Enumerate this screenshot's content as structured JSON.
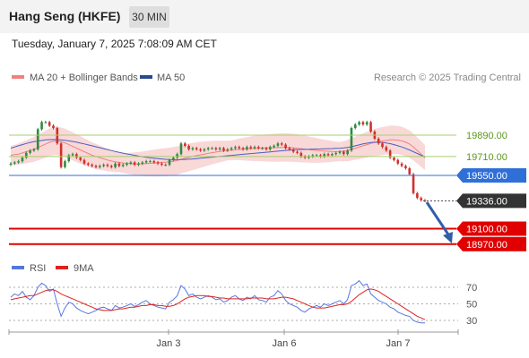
{
  "header": {
    "title": "Hang Seng (HKFE)",
    "timeframe": "30 MIN",
    "datetime": "Tuesday, January 7, 2025 7:08:09 AM CET"
  },
  "legend": {
    "ma20_bb": "MA 20 + Bollinger Bands",
    "ma50": "MA 50",
    "copyright": "Research © 2025 Trading Central"
  },
  "rsi_legend": {
    "rsi": "RSI",
    "ma9": "9MA"
  },
  "colors": {
    "candle_up": "#2e8b3e",
    "candle_down": "#d0302a",
    "bollinger_fill": "#f7c7c7",
    "ma20": "#f08080",
    "ma50": "#4a5fbf",
    "support": "#e00000",
    "pivot": "#2f6fd8",
    "resistance": "#a6cf6f",
    "last": "#333333",
    "rsi": "#5577dd",
    "rsi_ma": "#dd2222"
  },
  "chart_data": [
    {
      "type": "candlestick",
      "x_ticks": [
        "Jan 3",
        "Jan 6",
        "Jan 7"
      ],
      "price_levels": [
        {
          "value": 19890.0,
          "label": "19890.00",
          "kind": "resistance"
        },
        {
          "value": 19710.0,
          "label": "19710.00",
          "kind": "resistance"
        },
        {
          "value": 19550.0,
          "label": "19550.00",
          "kind": "pivot"
        },
        {
          "value": 19336.0,
          "label": "19336.00",
          "kind": "last"
        },
        {
          "value": 19100.0,
          "label": "19100.00",
          "kind": "support"
        },
        {
          "value": 18970.0,
          "label": "18970.00",
          "kind": "support"
        }
      ],
      "ylim": [
        18950,
        20190
      ],
      "close": [
        19650,
        19660,
        19670,
        19700,
        19740,
        19760,
        19770,
        19940,
        20000,
        20000,
        19970,
        19950,
        19820,
        19620,
        19670,
        19720,
        19730,
        19700,
        19680,
        19650,
        19640,
        19630,
        19620,
        19630,
        19640,
        19630,
        19620,
        19650,
        19630,
        19640,
        19650,
        19660,
        19640,
        19650,
        19660,
        19670,
        19670,
        19660,
        19650,
        19640,
        19640,
        19680,
        19700,
        19730,
        19820,
        19800,
        19770,
        19780,
        19770,
        19760,
        19770,
        19780,
        19780,
        19770,
        19780,
        19760,
        19770,
        19780,
        19790,
        19780,
        19770,
        19790,
        19780,
        19790,
        19780,
        19780,
        19770,
        19790,
        19800,
        19820,
        19810,
        19780,
        19770,
        19750,
        19740,
        19710,
        19700,
        19710,
        19720,
        19720,
        19710,
        19730,
        19720,
        19730,
        19740,
        19750,
        19730,
        19760,
        19950,
        19980,
        20000,
        19980,
        20000,
        19920,
        19860,
        19820,
        19790,
        19760,
        19700,
        19680,
        19650,
        19630,
        19610,
        19560,
        19400,
        19360,
        19340,
        19336
      ],
      "ma20": [
        19720,
        19725,
        19730,
        19740,
        19750,
        19760,
        19770,
        19785,
        19800,
        19815,
        19830,
        19838,
        19840,
        19835,
        19825,
        19810,
        19795,
        19780,
        19765,
        19750,
        19735,
        19720,
        19710,
        19700,
        19690,
        19680,
        19672,
        19665,
        19660,
        19655,
        19652,
        19650,
        19648,
        19647,
        19648,
        19650,
        19652,
        19655,
        19657,
        19660,
        19662,
        19665,
        19670,
        19676,
        19686,
        19694,
        19702,
        19710,
        19718,
        19724,
        19730,
        19736,
        19742,
        19747,
        19752,
        19756,
        19760,
        19763,
        19766,
        19770,
        19772,
        19774,
        19776,
        19778,
        19780,
        19781,
        19782,
        19783,
        19784,
        19785,
        19786,
        19786,
        19785,
        19783,
        19780,
        19776,
        19772,
        19768,
        19764,
        19761,
        19758,
        19756,
        19754,
        19752,
        19751,
        19752,
        19754,
        19760,
        19770,
        19780,
        19790,
        19800,
        19810,
        19820,
        19828,
        19835,
        19840,
        19845,
        19850,
        19850,
        19848,
        19842,
        19830,
        19815,
        19790,
        19760,
        19730,
        19700
      ],
      "ma50": [
        19780,
        19790,
        19800,
        19810,
        19820,
        19828,
        19835,
        19840,
        19845,
        19850,
        19852,
        19853,
        19852,
        19850,
        19846,
        19842,
        19836,
        19830,
        19823,
        19816,
        19808,
        19800,
        19792,
        19784,
        19776,
        19768,
        19760,
        19752,
        19745,
        19738,
        19731,
        19725,
        19719,
        19713,
        19708,
        19703,
        19699,
        19695,
        19692,
        19689,
        19686,
        19684,
        19683,
        19683,
        19684,
        19685,
        19687,
        19689,
        19692,
        19695,
        19698,
        19701,
        19704,
        19707,
        19710,
        19713,
        19716,
        19719,
        19722,
        19725,
        19728,
        19731,
        19734,
        19737,
        19740,
        19743,
        19746,
        19749,
        19752,
        19755,
        19758,
        19761,
        19764,
        19766,
        19768,
        19769,
        19770,
        19771,
        19772,
        19773,
        19774,
        19775,
        19776,
        19777,
        19778,
        19780,
        19782,
        19786,
        19792,
        19800,
        19808,
        19816,
        19822,
        19828,
        19830,
        19830,
        19828,
        19824,
        19818,
        19810,
        19800,
        19790,
        19778,
        19765,
        19750,
        19735,
        19720,
        19705
      ]
    },
    {
      "type": "line",
      "name": "RSI",
      "y_ticks": [
        70,
        50,
        30
      ],
      "ylim": [
        20,
        80
      ],
      "x_ticks": [
        "Jan 3",
        "Jan 6",
        "Jan 7"
      ],
      "series": [
        {
          "name": "RSI",
          "values": [
            58,
            62,
            60,
            65,
            58,
            55,
            60,
            70,
            75,
            72,
            65,
            68,
            50,
            35,
            45,
            52,
            50,
            45,
            42,
            40,
            38,
            40,
            42,
            45,
            46,
            44,
            42,
            48,
            45,
            46,
            48,
            50,
            47,
            49,
            52,
            54,
            50,
            48,
            46,
            45,
            44,
            52,
            55,
            60,
            72,
            68,
            60,
            62,
            58,
            56,
            58,
            60,
            58,
            55,
            56,
            52,
            54,
            58,
            60,
            56,
            54,
            58,
            56,
            60,
            55,
            54,
            52,
            58,
            60,
            66,
            62,
            54,
            50,
            48,
            46,
            42,
            40,
            44,
            46,
            48,
            46,
            50,
            48,
            50,
            52,
            54,
            50,
            55,
            72,
            74,
            78,
            72,
            74,
            62,
            58,
            54,
            52,
            50,
            46,
            44,
            40,
            38,
            36,
            35,
            30,
            28,
            27,
            27
          ]
        },
        {
          "name": "9MA",
          "values": [
            55,
            56,
            57,
            58,
            59,
            60,
            60,
            62,
            64,
            66,
            67,
            67,
            65,
            62,
            60,
            58,
            56,
            54,
            52,
            50,
            48,
            46,
            44,
            43,
            42,
            42,
            42,
            43,
            44,
            44,
            45,
            46,
            46,
            47,
            48,
            48,
            49,
            49,
            48,
            48,
            47,
            47,
            48,
            50,
            53,
            56,
            58,
            59,
            60,
            60,
            60,
            59,
            59,
            58,
            57,
            57,
            56,
            56,
            56,
            56,
            56,
            56,
            57,
            57,
            57,
            57,
            56,
            56,
            56,
            57,
            58,
            58,
            57,
            56,
            54,
            52,
            50,
            48,
            46,
            45,
            45,
            45,
            46,
            47,
            48,
            49,
            49,
            50,
            53,
            57,
            61,
            64,
            67,
            68,
            67,
            65,
            62,
            59,
            56,
            53,
            50,
            47,
            44,
            41,
            38,
            35,
            33,
            31
          ]
        }
      ]
    }
  ]
}
